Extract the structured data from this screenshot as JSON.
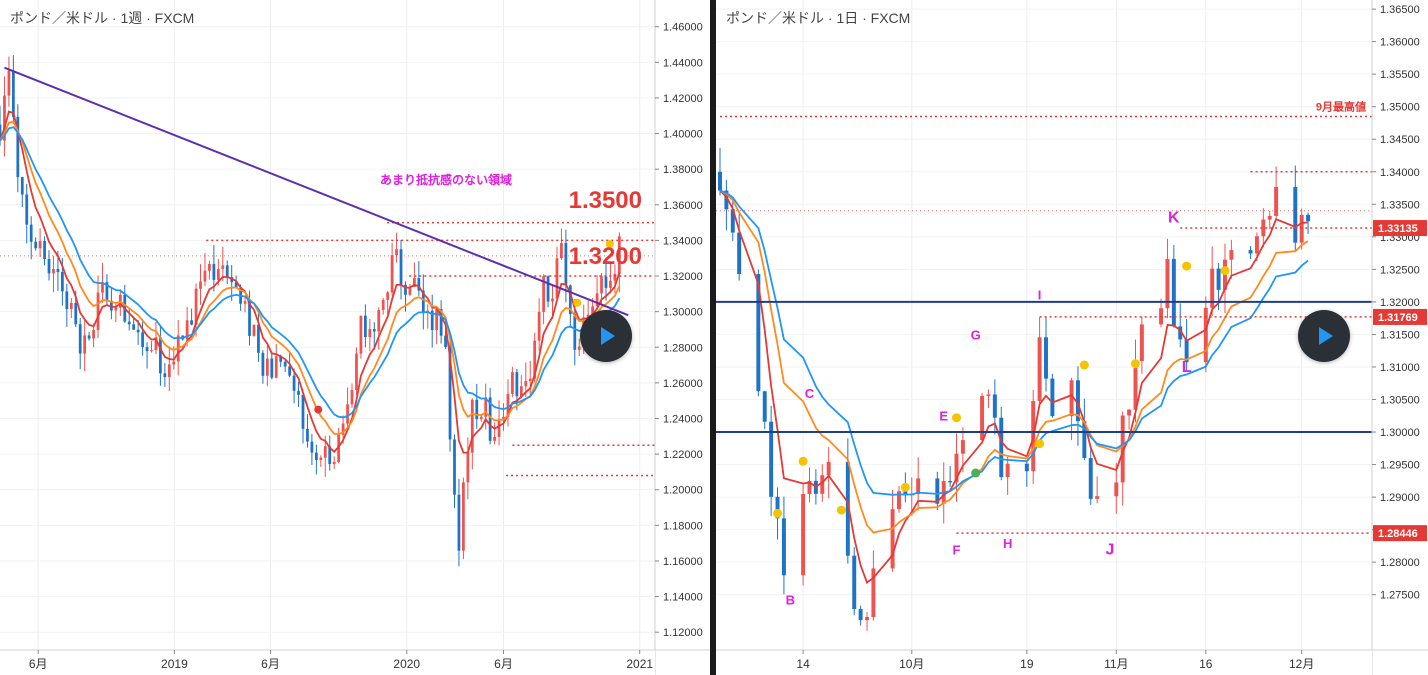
{
  "colors": {
    "up": "#ef5350",
    "down": "#1e73c8",
    "ma_short": "#e53935",
    "ma_mid": "#ff8a1f",
    "ma_long": "#2196f3",
    "trendline": "#5b2fb3",
    "level": "#e53935",
    "blue_level": "#1d3f8a",
    "annotation_magenta": "#e020e0",
    "play_bg": "#2b2f36",
    "play_icon": "#2196f3"
  },
  "left_panel": {
    "title": "ポンド／米ドル · 1週 · FXCM",
    "annotation": "あまり抵抗感のない領域",
    "big_labels": [
      "1.3500",
      "1.3200"
    ],
    "play_icon": "play-icon",
    "chart_data": {
      "type": "candlestick",
      "timeframe": "weekly",
      "ylim": [
        1.11,
        1.475
      ],
      "yticks": [
        "1.12000",
        "1.14000",
        "1.16000",
        "1.18000",
        "1.20000",
        "1.22000",
        "1.24000",
        "1.26000",
        "1.28000",
        "1.30000",
        "1.32000",
        "1.34000",
        "1.36000",
        "1.38000",
        "1.40000",
        "1.42000",
        "1.44000",
        "1.46000"
      ],
      "x_start": "2018-04-02",
      "x_end": "2021-01-25",
      "xticks": [
        {
          "label": "6月",
          "date": "2018-06-01"
        },
        {
          "label": "2019",
          "date": "2019-01-01"
        },
        {
          "label": "6月",
          "date": "2019-06-01"
        },
        {
          "label": "2020",
          "date": "2020-01-01"
        },
        {
          "label": "6月",
          "date": "2020-06-01"
        },
        {
          "label": "2021",
          "date": "2021-01-01"
        }
      ],
      "anchors": [
        [
          "2018-04-02",
          1.405
        ],
        [
          "2018-04-16",
          1.434
        ],
        [
          "2018-05-01",
          1.362
        ],
        [
          "2018-06-01",
          1.333
        ],
        [
          "2018-07-01",
          1.318
        ],
        [
          "2018-08-15",
          1.278
        ],
        [
          "2018-09-10",
          1.31
        ],
        [
          "2018-10-15",
          1.302
        ],
        [
          "2018-11-20",
          1.285
        ],
        [
          "2018-12-20",
          1.266
        ],
        [
          "2019-01-05",
          1.275
        ],
        [
          "2019-02-01",
          1.307
        ],
        [
          "2019-03-15",
          1.33
        ],
        [
          "2019-04-15",
          1.305
        ],
        [
          "2019-05-20",
          1.271
        ],
        [
          "2019-06-15",
          1.268
        ],
        [
          "2019-07-20",
          1.245
        ],
        [
          "2019-08-10",
          1.215
        ],
        [
          "2019-09-01",
          1.215
        ],
        [
          "2019-09-25",
          1.24
        ],
        [
          "2019-10-20",
          1.292
        ],
        [
          "2019-11-15",
          1.287
        ],
        [
          "2019-12-13",
          1.33
        ],
        [
          "2020-01-05",
          1.315
        ],
        [
          "2020-02-15",
          1.295
        ],
        [
          "2020-03-03",
          1.28
        ],
        [
          "2020-03-20",
          1.16
        ],
        [
          "2020-04-10",
          1.245
        ],
        [
          "2020-05-01",
          1.25
        ],
        [
          "2020-05-20",
          1.225
        ],
        [
          "2020-06-10",
          1.265
        ],
        [
          "2020-07-10",
          1.255
        ],
        [
          "2020-07-31",
          1.31
        ],
        [
          "2020-08-20",
          1.315
        ],
        [
          "2020-09-01",
          1.338
        ],
        [
          "2020-09-25",
          1.278
        ],
        [
          "2020-10-15",
          1.3
        ],
        [
          "2020-11-10",
          1.315
        ],
        [
          "2020-11-30",
          1.335
        ]
      ],
      "moving_averages": [
        {
          "name": "",
          "period": 6,
          "color": "#e53935"
        },
        {
          "name": "",
          "period": 11,
          "color": "#ff8a1f"
        },
        {
          "name": "",
          "period": 17,
          "color": "#2196f3"
        }
      ],
      "trendline": [
        [
          "2018-04-09",
          1.437
        ],
        [
          "2020-12-14",
          1.298
        ]
      ],
      "levels": [
        {
          "price": 1.35,
          "from": "2019-12-01"
        },
        {
          "price": 1.34,
          "from": "2019-02-20"
        },
        {
          "price": 1.32,
          "from": "2020-01-05"
        },
        {
          "price": 1.225,
          "from": "2020-06-15"
        },
        {
          "price": 1.208,
          "from": "2020-06-05"
        }
      ],
      "price_dotted_line": 1.3313,
      "markers": [
        {
          "date": "2019-08-15",
          "price": 1.245,
          "color": "#e53935"
        },
        {
          "date": "2020-09-25",
          "price": 1.305,
          "color": "#f5c400"
        },
        {
          "date": "2020-11-15",
          "price": 1.338,
          "color": "#f5c400"
        }
      ]
    }
  },
  "right_panel": {
    "title": "ポンド／米ドル · 1日 · FXCM",
    "level_caption": "9月最高値",
    "price_tags": [
      "1.33135",
      "1.31769",
      "1.28446"
    ],
    "letters": [
      "B",
      "C",
      "E",
      "F",
      "G",
      "H",
      "I",
      "J",
      "K",
      "L"
    ],
    "play_icon": "play-icon",
    "chart_data": {
      "type": "candlestick",
      "timeframe": "daily",
      "ylim": [
        1.2665,
        1.3664
      ],
      "yticks": [
        "1.27500",
        "1.28000",
        "1.28500",
        "1.29000",
        "1.29500",
        "1.30000",
        "1.30500",
        "1.31000",
        "1.31500",
        "1.32000",
        "1.32500",
        "1.33000",
        "1.33500",
        "1.34000",
        "1.34500",
        "1.35000",
        "1.35500",
        "1.36000",
        "1.36500"
      ],
      "x_start": "2020-09-01",
      "x_end": "2020-12-12",
      "xticks": [
        {
          "label": "14",
          "date": "2020-09-14"
        },
        {
          "label": "10月",
          "date": "2020-10-01"
        },
        {
          "label": "19",
          "date": "2020-10-19"
        },
        {
          "label": "11月",
          "date": "2020-11-02"
        },
        {
          "label": "16",
          "date": "2020-11-16"
        },
        {
          "label": "12月",
          "date": "2020-12-01"
        }
      ],
      "anchors": [
        [
          "2020-09-01",
          1.34
        ],
        [
          "2020-09-04",
          1.3265
        ],
        [
          "2020-09-11",
          1.279
        ],
        [
          "2020-09-15",
          1.2905
        ],
        [
          "2020-09-18",
          1.296
        ],
        [
          "2020-09-22",
          1.2745
        ],
        [
          "2020-09-23",
          1.27
        ],
        [
          "2020-09-24",
          1.2745
        ],
        [
          "2020-09-29",
          1.289
        ],
        [
          "2020-10-01",
          1.29
        ],
        [
          "2020-10-03",
          1.2915
        ],
        [
          "2020-10-07",
          1.293
        ],
        [
          "2020-10-09",
          1.3015
        ],
        [
          "2020-10-12",
          1.306
        ],
        [
          "2020-10-14",
          1.299
        ],
        [
          "2020-10-16",
          1.292
        ],
        [
          "2020-10-19",
          1.296
        ],
        [
          "2020-10-21",
          1.314
        ],
        [
          "2020-10-23",
          1.304
        ],
        [
          "2020-10-27",
          1.305
        ],
        [
          "2020-10-29",
          1.293
        ],
        [
          "2020-11-01",
          1.291
        ],
        [
          "2020-11-02",
          1.2945
        ],
        [
          "2020-11-04",
          1.305
        ],
        [
          "2020-11-06",
          1.315
        ],
        [
          "2020-11-09",
          1.318
        ],
        [
          "2020-11-10",
          1.325
        ],
        [
          "2020-11-12",
          1.314
        ],
        [
          "2020-11-13",
          1.311
        ],
        [
          "2020-11-16",
          1.321
        ],
        [
          "2020-11-18",
          1.323
        ],
        [
          "2020-11-20",
          1.327
        ],
        [
          "2020-11-23",
          1.33
        ],
        [
          "2020-11-25",
          1.336
        ],
        [
          "2020-11-27",
          1.337
        ],
        [
          "2020-11-30",
          1.3315
        ],
        [
          "2020-12-02",
          1.333
        ]
      ],
      "moving_averages": [
        {
          "name": "",
          "period": 5,
          "color": "#e53935"
        },
        {
          "name": "",
          "period": 11,
          "color": "#ff8a1f"
        },
        {
          "name": "",
          "period": 16,
          "color": "#2196f3"
        }
      ],
      "blue_levels": [
        1.32,
        1.3
      ],
      "red_levels": [
        {
          "price": 1.3485,
          "from": "2020-09-01"
        },
        {
          "price": 1.34,
          "from": "2020-11-23"
        },
        {
          "price": 1.33135,
          "from": "2020-11-12"
        },
        {
          "price": 1.31769,
          "from": "2020-10-21"
        },
        {
          "price": 1.28446,
          "from": "2020-10-08"
        }
      ],
      "price_dotted_line": 1.334,
      "annotations": [
        {
          "text": "B",
          "date": "2020-09-12",
          "price": 1.2735
        },
        {
          "text": "C",
          "date": "2020-09-15",
          "price": 1.3052
        },
        {
          "text": "E",
          "date": "2020-10-06",
          "price": 1.3018
        },
        {
          "text": "F",
          "date": "2020-10-08",
          "price": 1.2812
        },
        {
          "text": "G",
          "date": "2020-10-11",
          "price": 1.3142
        },
        {
          "text": "H",
          "date": "2020-10-16",
          "price": 1.2822
        },
        {
          "text": "I",
          "date": "2020-10-21",
          "price": 1.3204
        },
        {
          "text": "J",
          "date": "2020-11-01",
          "price": 1.2812
        },
        {
          "text": "K",
          "date": "2020-11-11",
          "price": 1.3322
        },
        {
          "text": "L",
          "date": "2020-11-13",
          "price": 1.3092
        }
      ],
      "markers": [
        {
          "date": "2020-09-10",
          "price": 1.2875,
          "color": "#f5c400"
        },
        {
          "date": "2020-09-14",
          "price": 1.2955,
          "color": "#f5c400"
        },
        {
          "date": "2020-09-20",
          "price": 1.288,
          "color": "#f5c400"
        },
        {
          "date": "2020-09-30",
          "price": 1.2915,
          "color": "#f5c400"
        },
        {
          "date": "2020-10-08",
          "price": 1.3022,
          "color": "#f5c400"
        },
        {
          "date": "2020-10-11",
          "price": 1.2937,
          "color": "#4caf50"
        },
        {
          "date": "2020-10-21",
          "price": 1.2982,
          "color": "#f5c400"
        },
        {
          "date": "2020-10-28",
          "price": 1.3103,
          "color": "#f5c400"
        },
        {
          "date": "2020-11-05",
          "price": 1.3105,
          "color": "#f5c400"
        },
        {
          "date": "2020-11-13",
          "price": 1.3255,
          "color": "#f5c400"
        },
        {
          "date": "2020-11-19",
          "price": 1.3248,
          "color": "#f5c400"
        }
      ]
    }
  }
}
